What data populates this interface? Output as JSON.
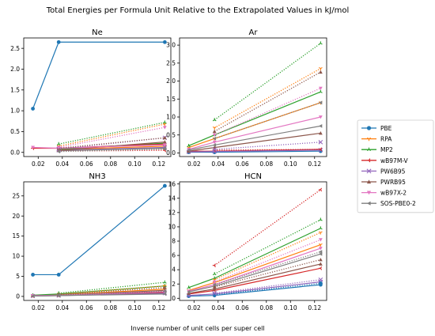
{
  "figure": {
    "title": "Total Energies per Formula Unit Relative to the Extrapolated Values in kJ/mol",
    "xlabel": "Inverse number of unit cells per super cell"
  },
  "legend": {
    "placement": "right",
    "entries": [
      {
        "name": "PBE",
        "color": "#1f77b4",
        "marker": "circle"
      },
      {
        "name": "RPA",
        "color": "#ff7f0e",
        "marker": "tri-down"
      },
      {
        "name": "MP2",
        "color": "#2ca02c",
        "marker": "tri-up"
      },
      {
        "name": "wB97M-V",
        "color": "#d62728",
        "marker": "tri-left"
      },
      {
        "name": "PW6B95",
        "color": "#9467bd",
        "marker": "x"
      },
      {
        "name": "PWRB95",
        "color": "#8c564b",
        "marker": "triangle-up"
      },
      {
        "name": "wB97X-2",
        "color": "#e377c2",
        "marker": "triangle-down"
      },
      {
        "name": "SOS-PBE0-2",
        "color": "#7f7f7f",
        "marker": "triangle-left"
      }
    ]
  },
  "chart_data": [
    {
      "type": "line",
      "title": "Ne",
      "xlim": [
        0.008,
        0.13
      ],
      "xticks": [
        0.02,
        0.04,
        0.06,
        0.08,
        0.1,
        0.12
      ],
      "xtick_labels": [
        "0.02",
        "0.04",
        "0.06",
        "0.08",
        "0.10",
        "0.12"
      ],
      "ylim": [
        -0.1,
        2.75
      ],
      "yticks": [
        0.0,
        0.5,
        1.0,
        1.5,
        2.0,
        2.5
      ],
      "ytick_labels": [
        "0.0",
        "0.5",
        "1.0",
        "1.5",
        "2.0",
        "2.5"
      ],
      "series": [
        {
          "name": "PBE",
          "style": "solid",
          "x": [
            0.0156,
            0.037,
            0.125
          ],
          "values": [
            1.05,
            2.65,
            2.65
          ]
        },
        {
          "name": "RPA",
          "style": "solid",
          "x": [
            0.037,
            0.125
          ],
          "values": [
            0.07,
            0.15
          ]
        },
        {
          "name": "MP2",
          "style": "solid",
          "x": [
            0.037,
            0.125
          ],
          "values": [
            0.08,
            0.22
          ]
        },
        {
          "name": "wB97M-V",
          "style": "solid",
          "x": [
            0.0156,
            0.037,
            0.125
          ],
          "values": [
            0.1,
            0.1,
            0.2
          ]
        },
        {
          "name": "PW6B95",
          "style": "solid",
          "x": [
            0.037,
            0.125
          ],
          "values": [
            0.05,
            0.12
          ]
        },
        {
          "name": "PWRB95",
          "style": "solid",
          "x": [
            0.037,
            0.125
          ],
          "values": [
            0.05,
            0.25
          ]
        },
        {
          "name": "wB97X-2",
          "style": "solid",
          "x": [
            0.0156,
            0.037,
            0.125
          ],
          "values": [
            0.12,
            0.1,
            0.18
          ]
        },
        {
          "name": "SOS-PBE0-2",
          "style": "solid",
          "x": [
            0.037,
            0.125
          ],
          "values": [
            0.04,
            0.1
          ]
        },
        {
          "name": "RPA",
          "style": "dotted",
          "x": [
            0.037,
            0.125
          ],
          "values": [
            0.15,
            0.68
          ]
        },
        {
          "name": "MP2",
          "style": "dotted",
          "x": [
            0.037,
            0.125
          ],
          "values": [
            0.2,
            0.72
          ]
        },
        {
          "name": "wB97M-V",
          "style": "dotted",
          "x": [
            0.037,
            0.125
          ],
          "values": [
            0.03,
            0.05
          ]
        },
        {
          "name": "PW6B95",
          "style": "dotted",
          "x": [
            0.037,
            0.125
          ],
          "values": [
            0.08,
            0.35
          ]
        },
        {
          "name": "PWRB95",
          "style": "dotted",
          "x": [
            0.037,
            0.125
          ],
          "values": [
            0.1,
            0.35
          ]
        },
        {
          "name": "wB97X-2",
          "style": "dotted",
          "x": [
            0.037,
            0.125
          ],
          "values": [
            0.12,
            0.6
          ]
        },
        {
          "name": "SOS-PBE0-2",
          "style": "dotted",
          "x": [
            0.037,
            0.125
          ],
          "values": [
            0.02,
            0.08
          ]
        }
      ]
    },
    {
      "type": "line",
      "title": "Ar",
      "xlim": [
        0.008,
        0.13
      ],
      "xticks": [
        0.02,
        0.04,
        0.06,
        0.08,
        0.1,
        0.12
      ],
      "xtick_labels": [
        "0.02",
        "0.04",
        "0.06",
        "0.08",
        "0.10",
        "0.12"
      ],
      "ylim": [
        -0.1,
        3.2
      ],
      "yticks": [
        0.0,
        0.5,
        1.0,
        1.5,
        2.0,
        2.5,
        3.0
      ],
      "ytick_labels": [
        "0.0",
        "0.5",
        "1.0",
        "1.5",
        "2.0",
        "2.5",
        "3.0"
      ],
      "series": [
        {
          "name": "PBE",
          "style": "solid",
          "x": [
            0.0156,
            0.037,
            0.125
          ],
          "values": [
            0.02,
            0.02,
            0.05
          ]
        },
        {
          "name": "RPA",
          "style": "solid",
          "x": [
            0.0156,
            0.037,
            0.125
          ],
          "values": [
            0.15,
            0.4,
            1.4
          ]
        },
        {
          "name": "MP2",
          "style": "solid",
          "x": [
            0.0156,
            0.037,
            0.125
          ],
          "values": [
            0.2,
            0.5,
            1.7
          ]
        },
        {
          "name": "wB97M-V",
          "style": "solid",
          "x": [
            0.0156,
            0.037,
            0.125
          ],
          "values": [
            0.05,
            0.05,
            0.1
          ]
        },
        {
          "name": "PW6B95",
          "style": "solid",
          "x": [
            0.0156,
            0.037,
            0.125
          ],
          "values": [
            0.03,
            0.04,
            0.08
          ]
        },
        {
          "name": "PWRB95",
          "style": "solid",
          "x": [
            0.0156,
            0.037,
            0.125
          ],
          "values": [
            0.05,
            0.15,
            0.55
          ]
        },
        {
          "name": "wB97X-2",
          "style": "solid",
          "x": [
            0.0156,
            0.037,
            0.125
          ],
          "values": [
            0.1,
            0.3,
            1.0
          ]
        },
        {
          "name": "SOS-PBE0-2",
          "style": "solid",
          "x": [
            0.0156,
            0.037,
            0.125
          ],
          "values": [
            0.08,
            0.22,
            0.75
          ]
        },
        {
          "name": "RPA",
          "style": "dotted",
          "x": [
            0.037,
            0.125
          ],
          "values": [
            0.7,
            2.35
          ]
        },
        {
          "name": "MP2",
          "style": "dotted",
          "x": [
            0.037,
            0.125
          ],
          "values": [
            0.92,
            3.05
          ]
        },
        {
          "name": "wB97M-V",
          "style": "dotted",
          "x": [
            0.037,
            0.125
          ],
          "values": [
            0.08,
            0.1
          ]
        },
        {
          "name": "PW6B95",
          "style": "dotted",
          "x": [
            0.037,
            0.125
          ],
          "values": [
            0.1,
            0.3
          ]
        },
        {
          "name": "PWRB95",
          "style": "dotted",
          "x": [
            0.037,
            0.125
          ],
          "values": [
            0.6,
            2.25
          ]
        },
        {
          "name": "wB97X-2",
          "style": "dotted",
          "x": [
            0.037,
            0.125
          ],
          "values": [
            0.5,
            1.8
          ]
        },
        {
          "name": "SOS-PBE0-2",
          "style": "dotted",
          "x": [
            0.037,
            0.125
          ],
          "values": [
            0.4,
            1.4
          ]
        }
      ]
    },
    {
      "type": "line",
      "title": "NH3",
      "xlim": [
        0.008,
        0.13
      ],
      "xticks": [
        0.02,
        0.04,
        0.06,
        0.08,
        0.1,
        0.12
      ],
      "xtick_labels": [
        "0.02",
        "0.04",
        "0.06",
        "0.08",
        "0.10",
        "0.12"
      ],
      "ylim": [
        -1,
        28.5
      ],
      "yticks": [
        0,
        5,
        10,
        15,
        20,
        25
      ],
      "ytick_labels": [
        "0",
        "5",
        "10",
        "15",
        "20",
        "25"
      ],
      "series": [
        {
          "name": "PBE",
          "style": "solid",
          "x": [
            0.0156,
            0.037,
            0.125
          ],
          "values": [
            5.4,
            5.4,
            27.5
          ]
        },
        {
          "name": "RPA",
          "style": "solid",
          "x": [
            0.0156,
            0.037,
            0.125
          ],
          "values": [
            0.2,
            0.4,
            1.8
          ]
        },
        {
          "name": "MP2",
          "style": "solid",
          "x": [
            0.0156,
            0.037,
            0.125
          ],
          "values": [
            0.3,
            0.6,
            2.6
          ]
        },
        {
          "name": "wB97M-V",
          "style": "solid",
          "x": [
            0.0156,
            0.037,
            0.125
          ],
          "values": [
            0.1,
            0.2,
            1.0
          ]
        },
        {
          "name": "PW6B95",
          "style": "solid",
          "x": [
            0.0156,
            0.037,
            0.125
          ],
          "values": [
            0.1,
            0.2,
            0.8
          ]
        },
        {
          "name": "PWRB95",
          "style": "solid",
          "x": [
            0.0156,
            0.037,
            0.125
          ],
          "values": [
            0.2,
            0.3,
            1.5
          ]
        },
        {
          "name": "wB97X-2",
          "style": "solid",
          "x": [
            0.0156,
            0.037,
            0.125
          ],
          "values": [
            0.2,
            0.3,
            1.2
          ]
        },
        {
          "name": "SOS-PBE0-2",
          "style": "solid",
          "x": [
            0.0156,
            0.037,
            0.125
          ],
          "values": [
            0.1,
            0.2,
            0.6
          ]
        },
        {
          "name": "RPA",
          "style": "dotted",
          "x": [
            0.037,
            0.125
          ],
          "values": [
            0.6,
            2.6
          ]
        },
        {
          "name": "MP2",
          "style": "dotted",
          "x": [
            0.037,
            0.125
          ],
          "values": [
            0.8,
            3.5
          ]
        },
        {
          "name": "PWRB95",
          "style": "dotted",
          "x": [
            0.037,
            0.125
          ],
          "values": [
            0.5,
            2.2
          ]
        },
        {
          "name": "SOS-PBE0-2",
          "style": "dotted",
          "x": [
            0.037,
            0.125
          ],
          "values": [
            0.3,
            1.3
          ]
        }
      ]
    },
    {
      "type": "line",
      "title": "HCN",
      "xlim": [
        0.008,
        0.13
      ],
      "xticks": [
        0.02,
        0.04,
        0.06,
        0.08,
        0.1,
        0.12
      ],
      "xtick_labels": [
        "0.02",
        "0.04",
        "0.06",
        "0.08",
        "0.10",
        "0.12"
      ],
      "ylim": [
        -0.3,
        16.3
      ],
      "yticks": [
        0,
        2,
        4,
        6,
        8,
        10,
        12,
        14,
        16
      ],
      "ytick_labels": [
        "0",
        "2",
        "4",
        "6",
        "8",
        "10",
        "12",
        "14",
        "16"
      ],
      "series": [
        {
          "name": "PBE",
          "style": "solid",
          "x": [
            0.0156,
            0.037,
            0.125
          ],
          "values": [
            0.3,
            0.4,
            1.9
          ]
        },
        {
          "name": "RPA",
          "style": "solid",
          "x": [
            0.0156,
            0.037,
            0.125
          ],
          "values": [
            1.1,
            2.2,
            7.5
          ]
        },
        {
          "name": "MP2",
          "style": "solid",
          "x": [
            0.0156,
            0.037,
            0.125
          ],
          "values": [
            1.5,
            2.8,
            9.8
          ]
        },
        {
          "name": "wB97M-V",
          "style": "solid",
          "x": [
            0.0156,
            0.037,
            0.125
          ],
          "values": [
            0.6,
            1.1,
            4.2
          ]
        },
        {
          "name": "PW6B95",
          "style": "solid",
          "x": [
            0.0156,
            0.037,
            0.125
          ],
          "values": [
            0.4,
            0.6,
            2.3
          ]
        },
        {
          "name": "PWRB95",
          "style": "solid",
          "x": [
            0.0156,
            0.037,
            0.125
          ],
          "values": [
            0.7,
            1.3,
            4.8
          ]
        },
        {
          "name": "wB97X-2",
          "style": "solid",
          "x": [
            0.0156,
            0.037,
            0.125
          ],
          "values": [
            1.0,
            1.9,
            7.0
          ]
        },
        {
          "name": "SOS-PBE0-2",
          "style": "solid",
          "x": [
            0.0156,
            0.037,
            0.125
          ],
          "values": [
            0.9,
            1.7,
            6.2
          ]
        },
        {
          "name": "PBE",
          "style": "dotted",
          "x": [
            0.037,
            0.125
          ],
          "values": [
            0.5,
            2.1
          ]
        },
        {
          "name": "RPA",
          "style": "dotted",
          "x": [
            0.037,
            0.125
          ],
          "values": [
            2.6,
            9.2
          ]
        },
        {
          "name": "MP2",
          "style": "dotted",
          "x": [
            0.037,
            0.125
          ],
          "values": [
            3.4,
            11.0
          ]
        },
        {
          "name": "wB97M-V",
          "style": "dotted",
          "x": [
            0.037,
            0.125
          ],
          "values": [
            4.6,
            15.2
          ]
        },
        {
          "name": "PW6B95",
          "style": "dotted",
          "x": [
            0.037,
            0.125
          ],
          "values": [
            0.7,
            2.6
          ]
        },
        {
          "name": "PWRB95",
          "style": "dotted",
          "x": [
            0.037,
            0.125
          ],
          "values": [
            1.6,
            5.4
          ]
        },
        {
          "name": "wB97X-2",
          "style": "dotted",
          "x": [
            0.037,
            0.125
          ],
          "values": [
            2.3,
            8.2
          ]
        },
        {
          "name": "SOS-PBE0-2",
          "style": "dotted",
          "x": [
            0.037,
            0.125
          ],
          "values": [
            1.9,
            6.5
          ]
        }
      ]
    }
  ]
}
